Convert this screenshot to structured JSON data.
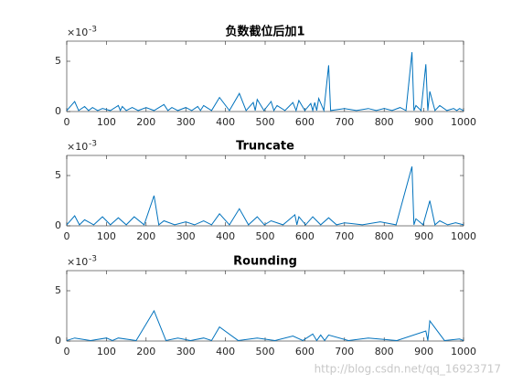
{
  "chart_data": [
    {
      "type": "line",
      "title": "负数截位后加1",
      "y_multiplier": {
        "base": "×10",
        "power": "-3"
      },
      "color": "#0072bd",
      "xlim": [
        0,
        1000
      ],
      "xticks": [
        0,
        100,
        200,
        300,
        400,
        500,
        600,
        700,
        800,
        900,
        1000
      ],
      "ylim": [
        0,
        7
      ],
      "yticks": [
        0,
        5
      ],
      "x": [
        0,
        20,
        30,
        45,
        55,
        65,
        78,
        90,
        110,
        130,
        135,
        140,
        150,
        165,
        180,
        200,
        220,
        245,
        255,
        265,
        280,
        300,
        315,
        330,
        337,
        345,
        365,
        385,
        410,
        435,
        452,
        470,
        475,
        480,
        497,
        515,
        522,
        530,
        550,
        570,
        578,
        585,
        600,
        615,
        620,
        625,
        630,
        635,
        648,
        660,
        665,
        700,
        730,
        760,
        780,
        800,
        820,
        840,
        855,
        870,
        875,
        880,
        893,
        905,
        910,
        915,
        928,
        940,
        958,
        975,
        983,
        990,
        1000
      ],
      "values": [
        0.1,
        1.0,
        0.1,
        0.5,
        0.1,
        0.4,
        0.1,
        0.3,
        0.1,
        0.6,
        0.1,
        0.5,
        0.1,
        0.4,
        0.1,
        0.4,
        0.1,
        0.7,
        0.1,
        0.4,
        0.1,
        0.4,
        0.1,
        0.5,
        0.1,
        0.6,
        0.1,
        1.4,
        0.1,
        1.8,
        0.1,
        0.9,
        0.1,
        1.2,
        0.1,
        1.0,
        0.1,
        0.6,
        0.1,
        0.9,
        0.1,
        1.1,
        0.1,
        0.8,
        0.1,
        0.9,
        0.1,
        1.3,
        0.1,
        4.6,
        0.1,
        0.3,
        0.1,
        0.3,
        0.1,
        0.3,
        0.1,
        0.4,
        0.1,
        5.9,
        0.1,
        0.6,
        0.1,
        4.7,
        0.1,
        2.0,
        0.1,
        0.6,
        0.1,
        0.3,
        0.1,
        0.3,
        0.1
      ]
    },
    {
      "type": "line",
      "title": "Truncate",
      "y_multiplier": {
        "base": "×10",
        "power": "-3"
      },
      "color": "#0072bd",
      "xlim": [
        0,
        1000
      ],
      "xticks": [
        0,
        100,
        200,
        300,
        400,
        500,
        600,
        700,
        800,
        900,
        1000
      ],
      "ylim": [
        0,
        7
      ],
      "yticks": [
        0,
        5
      ],
      "x": [
        0,
        20,
        32,
        45,
        68,
        90,
        110,
        130,
        150,
        170,
        195,
        220,
        232,
        245,
        272,
        300,
        322,
        345,
        365,
        385,
        410,
        435,
        458,
        480,
        498,
        515,
        545,
        575,
        580,
        585,
        602,
        620,
        640,
        660,
        680,
        700,
        745,
        790,
        830,
        870,
        875,
        880,
        898,
        915,
        928,
        940,
        960,
        980,
        1000
      ],
      "values": [
        0.1,
        1.0,
        0.1,
        0.6,
        0.1,
        0.9,
        0.1,
        0.8,
        0.1,
        0.9,
        0.1,
        3.0,
        0.1,
        0.5,
        0.1,
        0.4,
        0.1,
        0.5,
        0.1,
        1.2,
        0.1,
        1.7,
        0.1,
        0.9,
        0.1,
        0.5,
        0.1,
        1.1,
        0.1,
        0.9,
        0.1,
        0.9,
        0.1,
        0.8,
        0.1,
        0.3,
        0.1,
        0.4,
        0.1,
        5.9,
        0.1,
        0.7,
        0.1,
        2.5,
        0.1,
        0.5,
        0.1,
        0.3,
        0.1
      ]
    },
    {
      "type": "line",
      "title": "Rounding",
      "y_multiplier": {
        "base": "×10",
        "power": "-3"
      },
      "color": "#0072bd",
      "xlim": [
        0,
        1000
      ],
      "xticks": [
        0,
        100,
        200,
        300,
        400,
        500,
        600,
        700,
        800,
        900,
        1000
      ],
      "ylim": [
        0,
        7
      ],
      "yticks": [
        0,
        5
      ],
      "x": [
        0,
        20,
        60,
        100,
        115,
        130,
        175,
        220,
        250,
        280,
        312,
        345,
        365,
        385,
        432,
        480,
        525,
        570,
        595,
        620,
        630,
        640,
        650,
        660,
        710,
        760,
        832,
        905,
        910,
        915,
        952,
        990,
        1000
      ],
      "values": [
        0.05,
        0.3,
        0.05,
        0.3,
        0.05,
        0.3,
        0.05,
        3.0,
        0.05,
        0.3,
        0.05,
        0.3,
        0.05,
        1.4,
        0.05,
        0.3,
        0.05,
        0.5,
        0.05,
        0.7,
        0.05,
        0.6,
        0.05,
        0.6,
        0.05,
        0.3,
        0.05,
        1.0,
        0.05,
        2.0,
        0.05,
        0.2,
        0.05
      ]
    }
  ],
  "watermark": "http://blog.csdn.net/qq_16923717"
}
